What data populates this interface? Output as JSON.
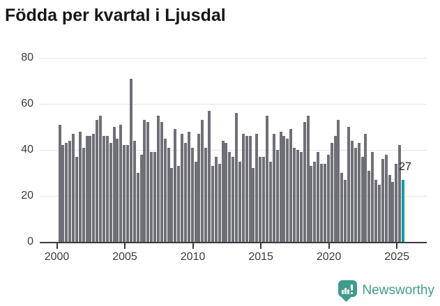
{
  "title": "Födda per kvartal i Ljusdal",
  "footer": {
    "brand": "Newsworthy",
    "brand_color": "#3f9c8e"
  },
  "chart_data": {
    "type": "bar",
    "title": "Födda per kvartal i Ljusdal",
    "xlabel": "",
    "ylabel": "",
    "ylim": [
      0,
      80
    ],
    "grid": true,
    "legend": false,
    "yticks": [
      0,
      20,
      40,
      60,
      80
    ],
    "xticks": [
      "2000",
      "2005",
      "2010",
      "2015",
      "2020",
      "2025"
    ],
    "bar_color": "#6f6f77",
    "highlight_color": "#0aa2a0",
    "highlight_index": 101,
    "highlight_label": "27",
    "categories": [
      "2000Q1",
      "2000Q2",
      "2000Q3",
      "2000Q4",
      "2001Q1",
      "2001Q2",
      "2001Q3",
      "2001Q4",
      "2002Q1",
      "2002Q2",
      "2002Q3",
      "2002Q4",
      "2003Q1",
      "2003Q2",
      "2003Q3",
      "2003Q4",
      "2004Q1",
      "2004Q2",
      "2004Q3",
      "2004Q4",
      "2005Q1",
      "2005Q2",
      "2005Q3",
      "2005Q4",
      "2006Q1",
      "2006Q2",
      "2006Q3",
      "2006Q4",
      "2007Q1",
      "2007Q2",
      "2007Q3",
      "2007Q4",
      "2008Q1",
      "2008Q2",
      "2008Q3",
      "2008Q4",
      "2009Q1",
      "2009Q2",
      "2009Q3",
      "2009Q4",
      "2010Q1",
      "2010Q2",
      "2010Q3",
      "2010Q4",
      "2011Q1",
      "2011Q2",
      "2011Q3",
      "2011Q4",
      "2012Q1",
      "2012Q2",
      "2012Q3",
      "2012Q4",
      "2013Q1",
      "2013Q2",
      "2013Q3",
      "2013Q4",
      "2014Q1",
      "2014Q2",
      "2014Q3",
      "2014Q4",
      "2015Q1",
      "2015Q2",
      "2015Q3",
      "2015Q4",
      "2016Q1",
      "2016Q2",
      "2016Q3",
      "2016Q4",
      "2017Q1",
      "2017Q2",
      "2017Q3",
      "2017Q4",
      "2018Q1",
      "2018Q2",
      "2018Q3",
      "2018Q4",
      "2019Q1",
      "2019Q2",
      "2019Q3",
      "2019Q4",
      "2020Q1",
      "2020Q2",
      "2020Q3",
      "2020Q4",
      "2021Q1",
      "2021Q2",
      "2021Q3",
      "2021Q4",
      "2022Q1",
      "2022Q2",
      "2022Q3",
      "2022Q4",
      "2023Q1",
      "2023Q2",
      "2023Q3",
      "2023Q4",
      "2024Q1",
      "2024Q2",
      "2024Q3",
      "2024Q4",
      "2025Q1",
      "2025Q2"
    ],
    "values": [
      51,
      42,
      43,
      44,
      47,
      37,
      48,
      41,
      46,
      46,
      47,
      53,
      55,
      46,
      46,
      43,
      50,
      45,
      51,
      42,
      42,
      71,
      44,
      30,
      38,
      53,
      52,
      39,
      39,
      55,
      52,
      45,
      41,
      32,
      49,
      33,
      47,
      43,
      48,
      41,
      35,
      47,
      53,
      41,
      57,
      33,
      37,
      34,
      44,
      43,
      39,
      37,
      56,
      35,
      47,
      46,
      46,
      32,
      47,
      37,
      37,
      55,
      35,
      47,
      40,
      48,
      46,
      45,
      49,
      41,
      40,
      39,
      52,
      55,
      33,
      35,
      39,
      34,
      34,
      38,
      43,
      46,
      53,
      30,
      27,
      50,
      44,
      41,
      43,
      37,
      47,
      31,
      39,
      27,
      25,
      36,
      38,
      29,
      26,
      34,
      42,
      27
    ]
  }
}
